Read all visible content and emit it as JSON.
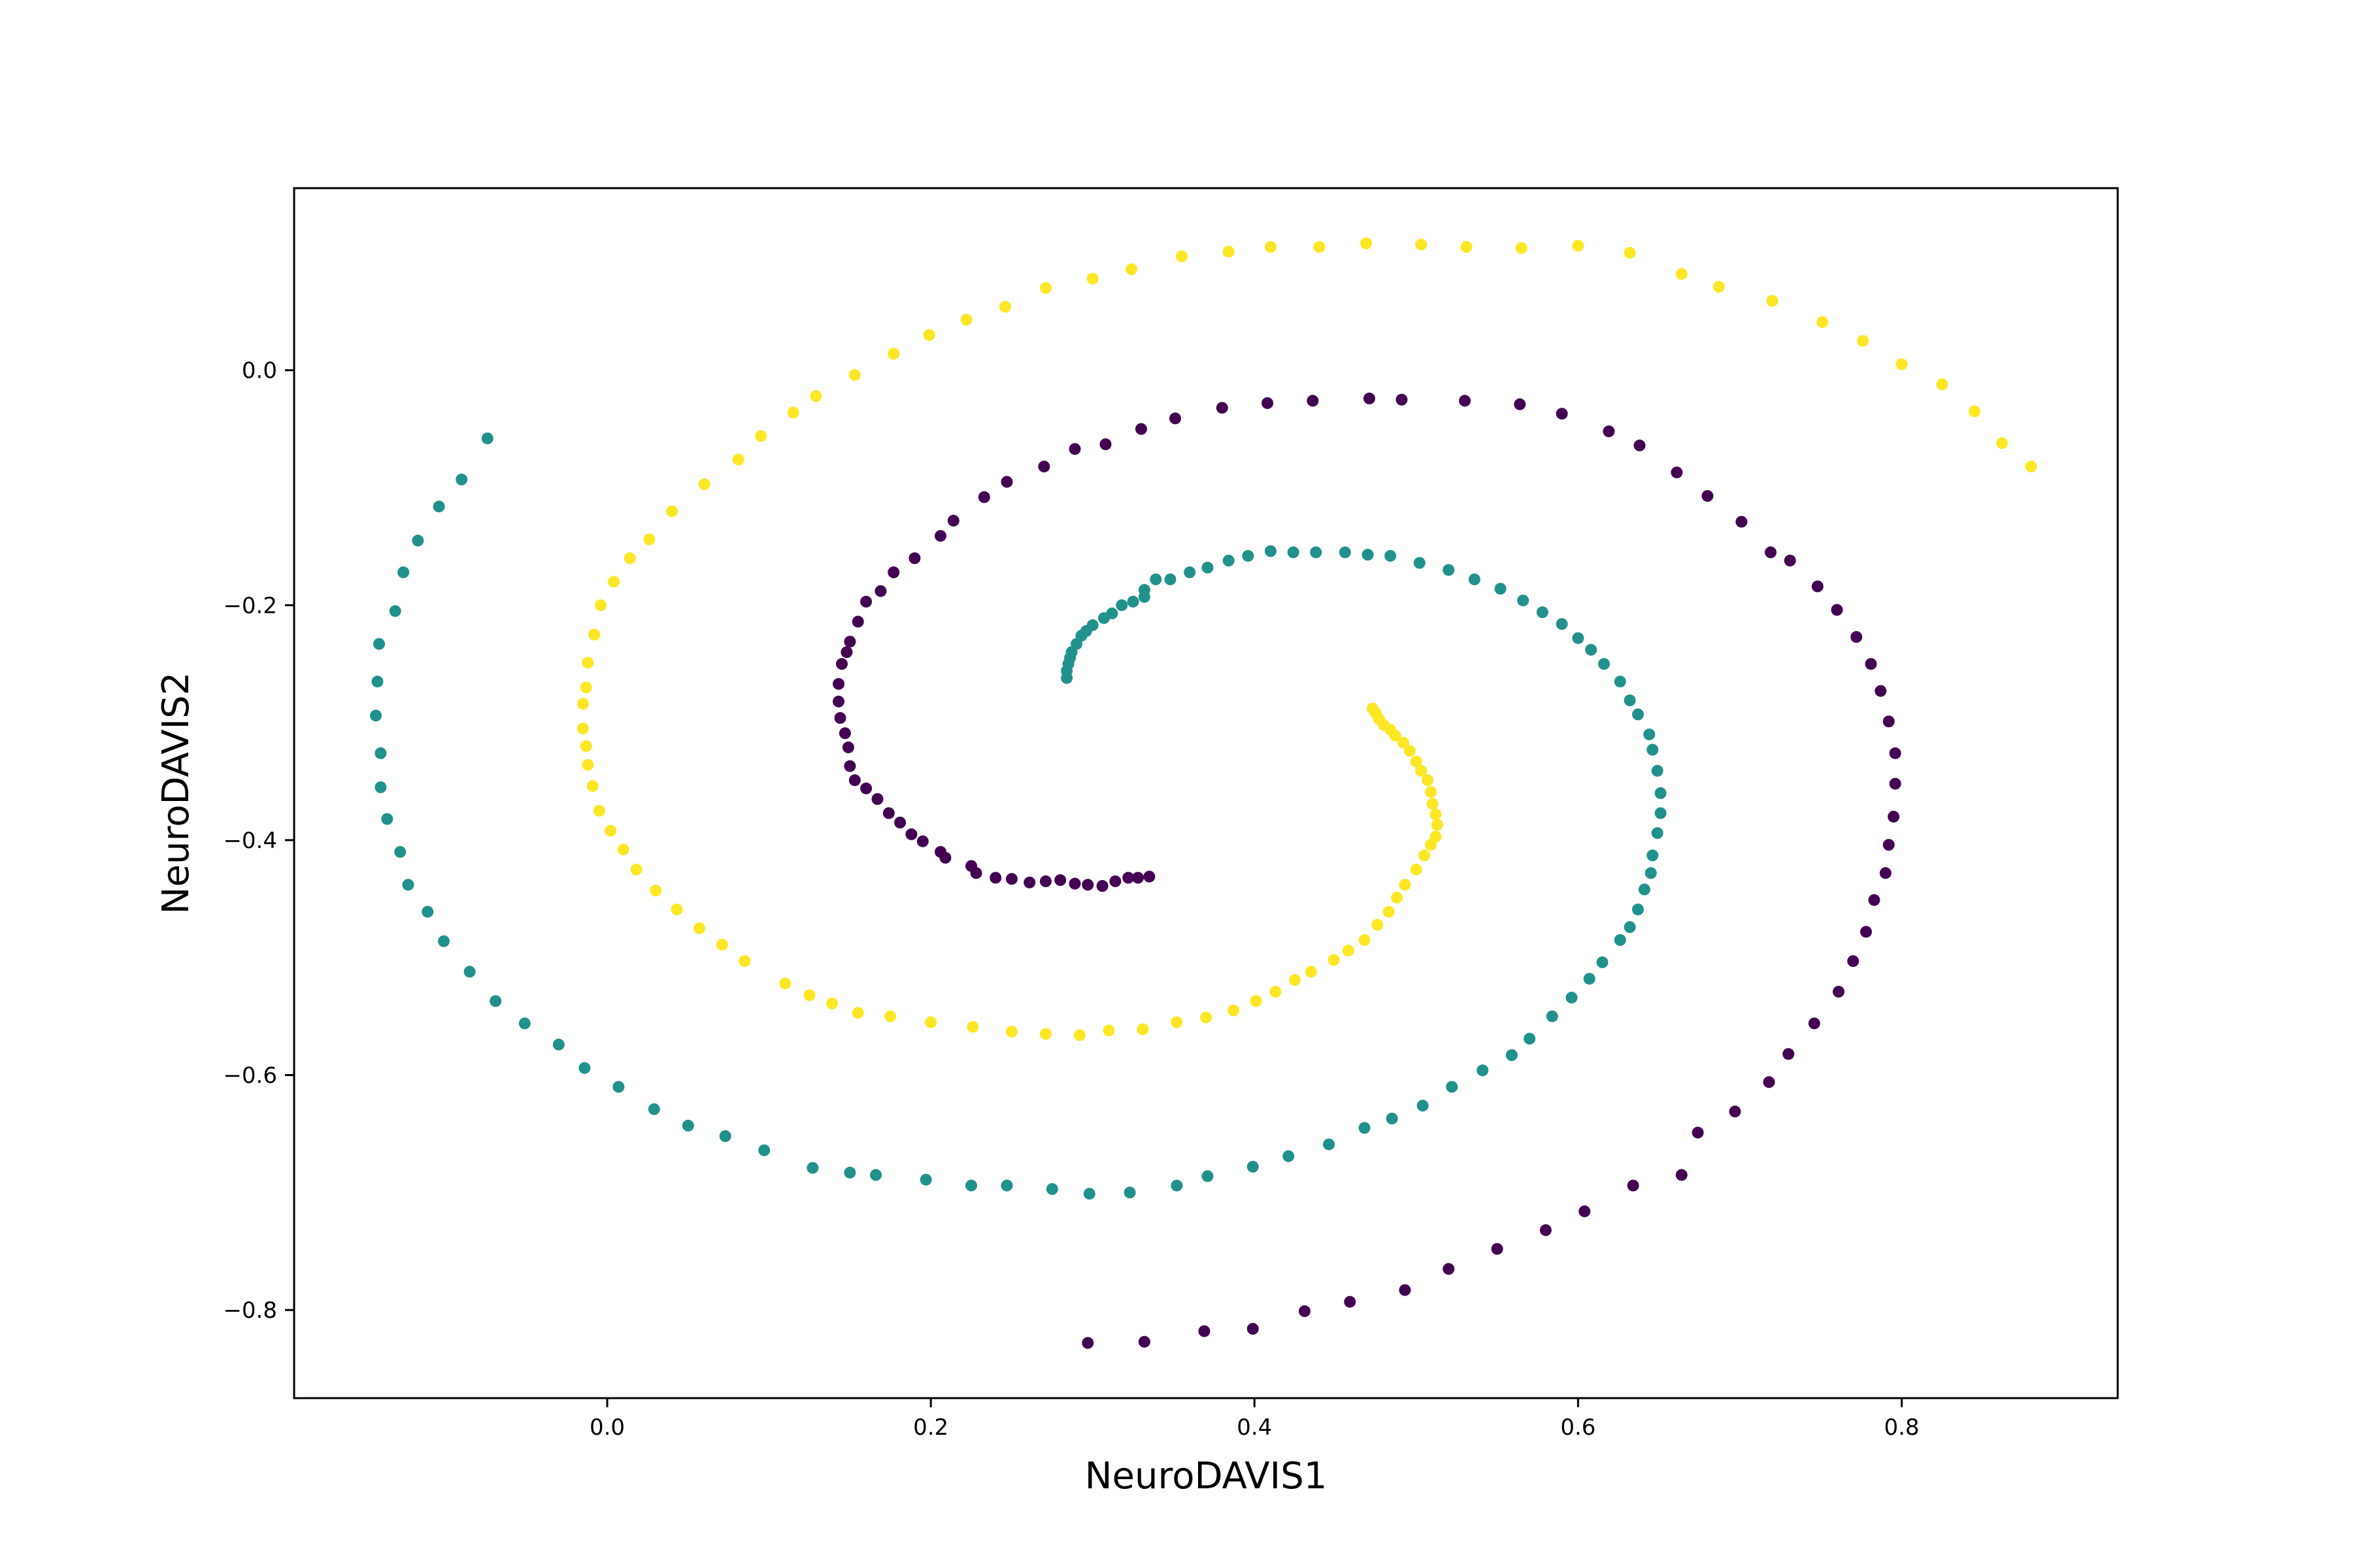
{
  "chart_data": {
    "type": "scatter",
    "title": "",
    "xlabel": "NeuroDAVIS1",
    "ylabel": "NeuroDAVIS2",
    "xlim": [
      -0.1935,
      0.9335
    ],
    "ylim": [
      -0.875,
      0.155
    ],
    "x_ticks": [
      0.0,
      0.2,
      0.4,
      0.6,
      0.8
    ],
    "x_tick_labels": [
      "0.0",
      "0.2",
      "0.4",
      "0.6",
      "0.8"
    ],
    "y_ticks": [
      0.0,
      -0.2,
      -0.4,
      -0.6,
      -0.8
    ],
    "y_tick_labels": [
      "0.0",
      "−0.2",
      "−0.4",
      "−0.6",
      "−0.8"
    ],
    "grid": false,
    "legend": "none",
    "series": [
      {
        "color": "#440154",
        "points": [
          [
            0.297,
            -0.828
          ],
          [
            0.332,
            -0.827
          ],
          [
            0.369,
            -0.818
          ],
          [
            0.399,
            -0.816
          ],
          [
            0.431,
            -0.801
          ],
          [
            0.459,
            -0.793
          ],
          [
            0.493,
            -0.783
          ],
          [
            0.52,
            -0.765
          ],
          [
            0.55,
            -0.748
          ],
          [
            0.58,
            -0.732
          ],
          [
            0.604,
            -0.716
          ],
          [
            0.634,
            -0.694
          ],
          [
            0.664,
            -0.685
          ],
          [
            0.674,
            -0.649
          ],
          [
            0.697,
            -0.631
          ],
          [
            0.718,
            -0.606
          ],
          [
            0.73,
            -0.582
          ],
          [
            0.746,
            -0.556
          ],
          [
            0.761,
            -0.529
          ],
          [
            0.77,
            -0.503
          ],
          [
            0.778,
            -0.478
          ],
          [
            0.783,
            -0.451
          ],
          [
            0.79,
            -0.428
          ],
          [
            0.792,
            -0.404
          ],
          [
            0.795,
            -0.38
          ],
          [
            0.796,
            -0.352
          ],
          [
            0.796,
            -0.326
          ],
          [
            0.792,
            -0.299
          ],
          [
            0.787,
            -0.273
          ],
          [
            0.781,
            -0.25
          ],
          [
            0.772,
            -0.227
          ],
          [
            0.76,
            -0.204
          ],
          [
            0.748,
            -0.184
          ],
          [
            0.731,
            -0.162
          ],
          [
            0.719,
            -0.155
          ],
          [
            0.701,
            -0.129
          ],
          [
            0.68,
            -0.107
          ],
          [
            0.661,
            -0.087
          ],
          [
            0.638,
            -0.064
          ],
          [
            0.619,
            -0.052
          ],
          [
            0.59,
            -0.037
          ],
          [
            0.564,
            -0.029
          ],
          [
            0.53,
            -0.026
          ],
          [
            0.491,
            -0.025
          ],
          [
            0.471,
            -0.024
          ],
          [
            0.436,
            -0.026
          ],
          [
            0.408,
            -0.028
          ],
          [
            0.38,
            -0.032
          ],
          [
            0.351,
            -0.041
          ],
          [
            0.33,
            -0.05
          ],
          [
            0.308,
            -0.063
          ],
          [
            0.289,
            -0.067
          ],
          [
            0.27,
            -0.082
          ],
          [
            0.247,
            -0.095
          ],
          [
            0.233,
            -0.108
          ],
          [
            0.214,
            -0.128
          ],
          [
            0.206,
            -0.141
          ],
          [
            0.19,
            -0.16
          ],
          [
            0.177,
            -0.172
          ],
          [
            0.169,
            -0.188
          ],
          [
            0.16,
            -0.197
          ],
          [
            0.155,
            -0.214
          ],
          [
            0.15,
            -0.231
          ],
          [
            0.148,
            -0.24
          ],
          [
            0.145,
            -0.25
          ],
          [
            0.143,
            -0.267
          ],
          [
            0.143,
            -0.282
          ],
          [
            0.144,
            -0.296
          ],
          [
            0.147,
            -0.309
          ],
          [
            0.149,
            -0.321
          ],
          [
            0.15,
            -0.337
          ],
          [
            0.153,
            -0.349
          ],
          [
            0.16,
            -0.356
          ],
          [
            0.167,
            -0.365
          ],
          [
            0.174,
            -0.377
          ],
          [
            0.181,
            -0.385
          ],
          [
            0.188,
            -0.395
          ],
          [
            0.195,
            -0.401
          ],
          [
            0.206,
            -0.41
          ],
          [
            0.209,
            -0.415
          ],
          [
            0.225,
            -0.422
          ],
          [
            0.228,
            -0.428
          ],
          [
            0.24,
            -0.432
          ],
          [
            0.25,
            -0.433
          ],
          [
            0.261,
            -0.436
          ],
          [
            0.271,
            -0.435
          ],
          [
            0.28,
            -0.434
          ],
          [
            0.289,
            -0.437
          ],
          [
            0.297,
            -0.438
          ],
          [
            0.306,
            -0.439
          ],
          [
            0.314,
            -0.435
          ],
          [
            0.322,
            -0.432
          ],
          [
            0.328,
            -0.432
          ],
          [
            0.335,
            -0.431
          ]
        ]
      },
      {
        "color": "#21918c",
        "points": [
          [
            -0.074,
            -0.058
          ],
          [
            -0.09,
            -0.093
          ],
          [
            -0.104,
            -0.116
          ],
          [
            -0.117,
            -0.145
          ],
          [
            -0.126,
            -0.172
          ],
          [
            -0.131,
            -0.205
          ],
          [
            -0.141,
            -0.233
          ],
          [
            -0.142,
            -0.265
          ],
          [
            -0.143,
            -0.294
          ],
          [
            -0.14,
            -0.326
          ],
          [
            -0.14,
            -0.355
          ],
          [
            -0.136,
            -0.382
          ],
          [
            -0.128,
            -0.41
          ],
          [
            -0.123,
            -0.438
          ],
          [
            -0.111,
            -0.461
          ],
          [
            -0.101,
            -0.486
          ],
          [
            -0.085,
            -0.512
          ],
          [
            -0.069,
            -0.537
          ],
          [
            -0.051,
            -0.556
          ],
          [
            -0.03,
            -0.574
          ],
          [
            -0.014,
            -0.594
          ],
          [
            0.007,
            -0.61
          ],
          [
            0.029,
            -0.629
          ],
          [
            0.05,
            -0.643
          ],
          [
            0.073,
            -0.652
          ],
          [
            0.097,
            -0.664
          ],
          [
            0.127,
            -0.679
          ],
          [
            0.15,
            -0.683
          ],
          [
            0.166,
            -0.685
          ],
          [
            0.197,
            -0.689
          ],
          [
            0.225,
            -0.694
          ],
          [
            0.247,
            -0.694
          ],
          [
            0.275,
            -0.697
          ],
          [
            0.298,
            -0.701
          ],
          [
            0.323,
            -0.7
          ],
          [
            0.352,
            -0.694
          ],
          [
            0.371,
            -0.686
          ],
          [
            0.399,
            -0.678
          ],
          [
            0.421,
            -0.669
          ],
          [
            0.446,
            -0.659
          ],
          [
            0.468,
            -0.645
          ],
          [
            0.485,
            -0.637
          ],
          [
            0.504,
            -0.626
          ],
          [
            0.522,
            -0.61
          ],
          [
            0.541,
            -0.596
          ],
          [
            0.559,
            -0.583
          ],
          [
            0.57,
            -0.569
          ],
          [
            0.584,
            -0.55
          ],
          [
            0.596,
            -0.534
          ],
          [
            0.607,
            -0.518
          ],
          [
            0.615,
            -0.504
          ],
          [
            0.626,
            -0.485
          ],
          [
            0.632,
            -0.474
          ],
          [
            0.637,
            -0.459
          ],
          [
            0.641,
            -0.442
          ],
          [
            0.645,
            -0.428
          ],
          [
            0.646,
            -0.413
          ],
          [
            0.649,
            -0.394
          ],
          [
            0.651,
            -0.377
          ],
          [
            0.651,
            -0.36
          ],
          [
            0.649,
            -0.341
          ],
          [
            0.646,
            -0.323
          ],
          [
            0.644,
            -0.31
          ],
          [
            0.637,
            -0.293
          ],
          [
            0.632,
            -0.281
          ],
          [
            0.626,
            -0.265
          ],
          [
            0.616,
            -0.25
          ],
          [
            0.608,
            -0.238
          ],
          [
            0.6,
            -0.228
          ],
          [
            0.59,
            -0.216
          ],
          [
            0.578,
            -0.206
          ],
          [
            0.566,
            -0.196
          ],
          [
            0.552,
            -0.186
          ],
          [
            0.536,
            -0.178
          ],
          [
            0.52,
            -0.17
          ],
          [
            0.502,
            -0.164
          ],
          [
            0.484,
            -0.158
          ],
          [
            0.47,
            -0.157
          ],
          [
            0.456,
            -0.155
          ],
          [
            0.438,
            -0.155
          ],
          [
            0.424,
            -0.155
          ],
          [
            0.41,
            -0.154
          ],
          [
            0.396,
            -0.158
          ],
          [
            0.384,
            -0.162
          ],
          [
            0.371,
            -0.168
          ],
          [
            0.36,
            -0.172
          ],
          [
            0.348,
            -0.178
          ],
          [
            0.339,
            -0.178
          ],
          [
            0.332,
            -0.187
          ],
          [
            0.332,
            -0.193
          ],
          [
            0.325,
            -0.197
          ],
          [
            0.318,
            -0.2
          ],
          [
            0.312,
            -0.207
          ],
          [
            0.307,
            -0.211
          ],
          [
            0.3,
            -0.217
          ],
          [
            0.296,
            -0.222
          ],
          [
            0.293,
            -0.226
          ],
          [
            0.29,
            -0.233
          ],
          [
            0.287,
            -0.24
          ],
          [
            0.286,
            -0.245
          ],
          [
            0.285,
            -0.25
          ],
          [
            0.284,
            -0.256
          ],
          [
            0.284,
            -0.262
          ]
        ]
      },
      {
        "color": "#fde725",
        "points": [
          [
            0.88,
            -0.082
          ],
          [
            0.862,
            -0.062
          ],
          [
            0.845,
            -0.035
          ],
          [
            0.825,
            -0.012
          ],
          [
            0.8,
            0.005
          ],
          [
            0.776,
            0.025
          ],
          [
            0.751,
            0.041
          ],
          [
            0.72,
            0.059
          ],
          [
            0.687,
            0.071
          ],
          [
            0.664,
            0.082
          ],
          [
            0.632,
            0.1
          ],
          [
            0.6,
            0.106
          ],
          [
            0.565,
            0.104
          ],
          [
            0.531,
            0.105
          ],
          [
            0.503,
            0.107
          ],
          [
            0.469,
            0.108
          ],
          [
            0.44,
            0.105
          ],
          [
            0.41,
            0.105
          ],
          [
            0.384,
            0.101
          ],
          [
            0.355,
            0.097
          ],
          [
            0.324,
            0.086
          ],
          [
            0.3,
            0.078
          ],
          [
            0.271,
            0.07
          ],
          [
            0.246,
            0.054
          ],
          [
            0.222,
            0.043
          ],
          [
            0.199,
            0.03
          ],
          [
            0.177,
            0.014
          ],
          [
            0.153,
            -0.004
          ],
          [
            0.129,
            -0.022
          ],
          [
            0.115,
            -0.036
          ],
          [
            0.095,
            -0.056
          ],
          [
            0.081,
            -0.076
          ],
          [
            0.06,
            -0.097
          ],
          [
            0.04,
            -0.12
          ],
          [
            0.026,
            -0.144
          ],
          [
            0.014,
            -0.16
          ],
          [
            0.004,
            -0.18
          ],
          [
            -0.004,
            -0.2
          ],
          [
            -0.008,
            -0.225
          ],
          [
            -0.012,
            -0.249
          ],
          [
            -0.013,
            -0.27
          ],
          [
            -0.015,
            -0.284
          ],
          [
            -0.015,
            -0.305
          ],
          [
            -0.013,
            -0.32
          ],
          [
            -0.012,
            -0.336
          ],
          [
            -0.009,
            -0.354
          ],
          [
            -0.005,
            -0.375
          ],
          [
            0.002,
            -0.392
          ],
          [
            0.01,
            -0.408
          ],
          [
            0.018,
            -0.425
          ],
          [
            0.03,
            -0.443
          ],
          [
            0.043,
            -0.459
          ],
          [
            0.057,
            -0.475
          ],
          [
            0.071,
            -0.489
          ],
          [
            0.085,
            -0.503
          ],
          [
            0.11,
            -0.522
          ],
          [
            0.125,
            -0.532
          ],
          [
            0.139,
            -0.539
          ],
          [
            0.155,
            -0.547
          ],
          [
            0.175,
            -0.55
          ],
          [
            0.2,
            -0.555
          ],
          [
            0.226,
            -0.559
          ],
          [
            0.25,
            -0.563
          ],
          [
            0.271,
            -0.565
          ],
          [
            0.292,
            -0.566
          ],
          [
            0.31,
            -0.562
          ],
          [
            0.331,
            -0.561
          ],
          [
            0.352,
            -0.555
          ],
          [
            0.37,
            -0.551
          ],
          [
            0.387,
            -0.545
          ],
          [
            0.401,
            -0.537
          ],
          [
            0.413,
            -0.529
          ],
          [
            0.425,
            -0.519
          ],
          [
            0.435,
            -0.512
          ],
          [
            0.449,
            -0.502
          ],
          [
            0.458,
            -0.494
          ],
          [
            0.468,
            -0.485
          ],
          [
            0.476,
            -0.472
          ],
          [
            0.483,
            -0.461
          ],
          [
            0.488,
            -0.449
          ],
          [
            0.493,
            -0.438
          ],
          [
            0.5,
            -0.425
          ],
          [
            0.505,
            -0.413
          ],
          [
            0.509,
            -0.404
          ],
          [
            0.512,
            -0.397
          ],
          [
            0.513,
            -0.387
          ],
          [
            0.512,
            -0.378
          ],
          [
            0.51,
            -0.369
          ],
          [
            0.509,
            -0.359
          ],
          [
            0.507,
            -0.349
          ],
          [
            0.503,
            -0.341
          ],
          [
            0.5,
            -0.333
          ],
          [
            0.496,
            -0.324
          ],
          [
            0.492,
            -0.317
          ],
          [
            0.487,
            -0.311
          ],
          [
            0.484,
            -0.306
          ],
          [
            0.48,
            -0.302
          ],
          [
            0.477,
            -0.297
          ],
          [
            0.475,
            -0.292
          ],
          [
            0.473,
            -0.288
          ]
        ]
      }
    ]
  }
}
